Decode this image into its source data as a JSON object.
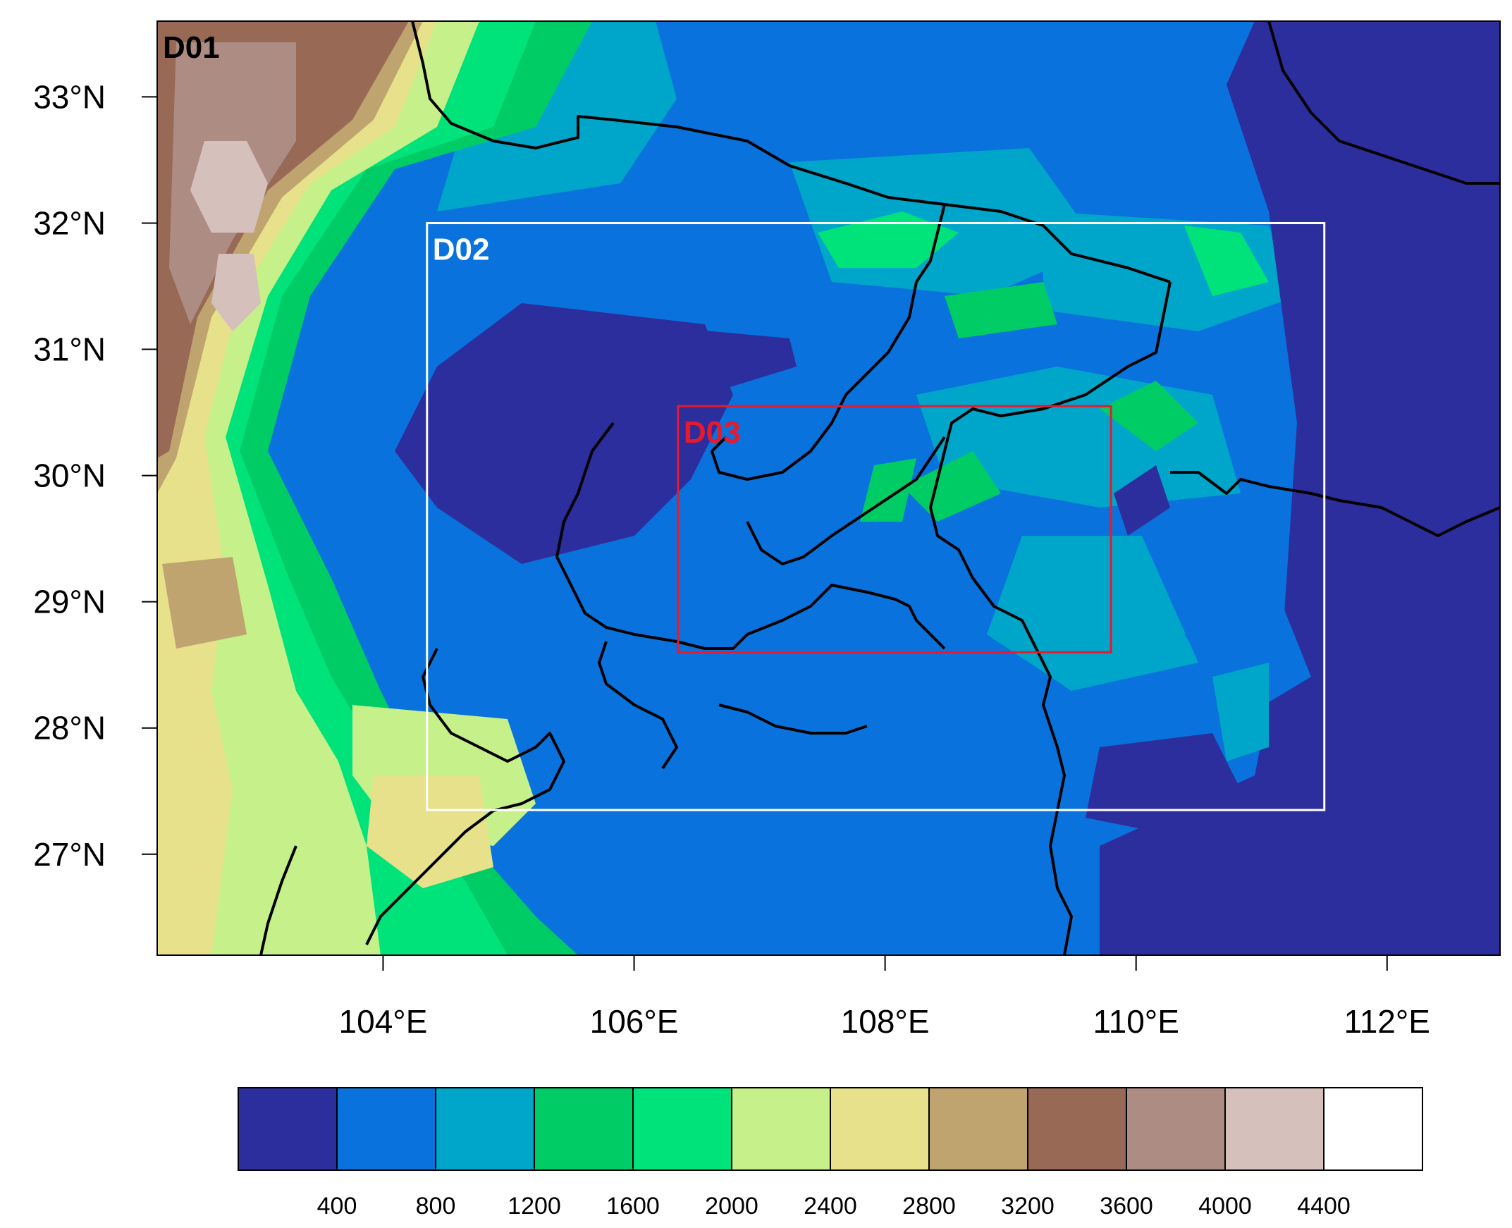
{
  "map": {
    "lon_range": [
      102.2,
      112.9
    ],
    "lat_range": [
      26.2,
      33.6
    ],
    "lon_ticks": [
      104,
      106,
      108,
      110,
      112
    ],
    "lat_ticks": [
      27,
      28,
      29,
      30,
      31,
      32,
      33
    ],
    "lon_labels": [
      "104°E",
      "106°E",
      "108°E",
      "110°E",
      "112°E"
    ],
    "lat_labels": [
      "27°N",
      "28°N",
      "29°N",
      "30°N",
      "31°N",
      "32°N",
      "33°N"
    ],
    "field": "terrain elevation",
    "boundary_color": "#000000"
  },
  "domains": [
    {
      "id": "D01",
      "label": "D01",
      "color": "#000000",
      "lon": [
        102.2,
        112.9
      ],
      "lat": [
        26.2,
        33.6
      ]
    },
    {
      "id": "D02",
      "label": "D02",
      "color": "#ffffff",
      "lon": [
        104.35,
        111.5
      ],
      "lat": [
        27.35,
        32.0
      ]
    },
    {
      "id": "D03",
      "label": "D03",
      "color": "#e8192c",
      "lon": [
        106.35,
        109.8
      ],
      "lat": [
        28.6,
        30.55
      ]
    }
  ],
  "colorbar": {
    "levels": [
      400,
      800,
      1200,
      1600,
      2000,
      2400,
      2800,
      3200,
      3600,
      4000,
      4400
    ],
    "labels": [
      "400",
      "800",
      "1200",
      "1600",
      "2000",
      "2400",
      "2800",
      "3200",
      "3600",
      "4000",
      "4400"
    ],
    "colors": [
      "#2b2e9c",
      "#0a72dc",
      "#00a6c9",
      "#00cc66",
      "#00e37a",
      "#c6f08a",
      "#e6e18a",
      "#c0a470",
      "#986a55",
      "#ad8c83",
      "#d5c0bc",
      "#ffffff"
    ]
  }
}
